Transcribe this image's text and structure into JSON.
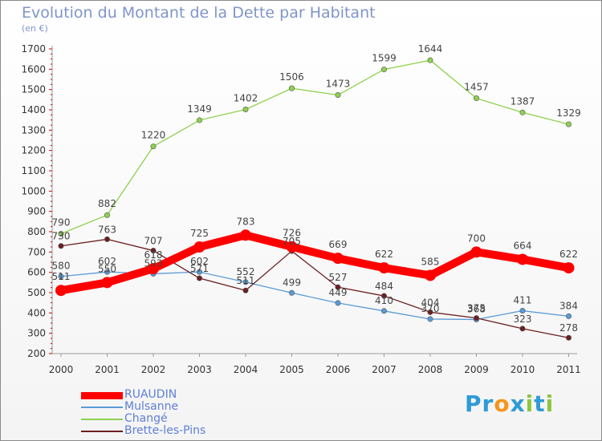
{
  "chart_data": {
    "type": "line",
    "title": "Evolution du Montant de la Dette par Habitant",
    "subtitle": "(en €)",
    "categories": [
      "2000",
      "2001",
      "2002",
      "2003",
      "2004",
      "2005",
      "2006",
      "2007",
      "2008",
      "2009",
      "2010",
      "2011"
    ],
    "y_ticks": [
      200,
      300,
      400,
      500,
      600,
      700,
      800,
      900,
      1000,
      1100,
      1200,
      1300,
      1400,
      1500,
      1600,
      1700
    ],
    "ylim": [
      200,
      1700
    ],
    "grid": false,
    "legend_position": "bottom-left",
    "series": [
      {
        "name": "RUAUDIN",
        "color": "#ff0000",
        "values": [
          511,
          550,
          618,
          725,
          783,
          726,
          669,
          622,
          585,
          700,
          664,
          622
        ]
      },
      {
        "name": "Mulsanne",
        "color": "#5b9bd5",
        "values": [
          580,
          602,
          593,
          602,
          552,
          499,
          449,
          410,
          370,
          368,
          411,
          384
        ]
      },
      {
        "name": "Changé",
        "color": "#8fd14f",
        "values": [
          790,
          882,
          1220,
          1349,
          1402,
          1506,
          1473,
          1599,
          1644,
          1457,
          1387,
          1329
        ]
      },
      {
        "name": "Brette-les-Pins",
        "color": "#6b1f22",
        "values": [
          730,
          763,
          707,
          571,
          511,
          705,
          527,
          484,
          404,
          375,
          323,
          278
        ]
      }
    ]
  },
  "logo": {
    "text_parts": [
      {
        "t": "Pr",
        "color": "#2e9bd6"
      },
      {
        "t": "o",
        "color": "#f7941d"
      },
      {
        "t": "x",
        "color": "#2e9bd6"
      },
      {
        "t": "i",
        "color": "#8dc63f"
      },
      {
        "t": "t",
        "color": "#2e9bd6"
      },
      {
        "t": "i",
        "color": "#8dc63f"
      }
    ]
  }
}
